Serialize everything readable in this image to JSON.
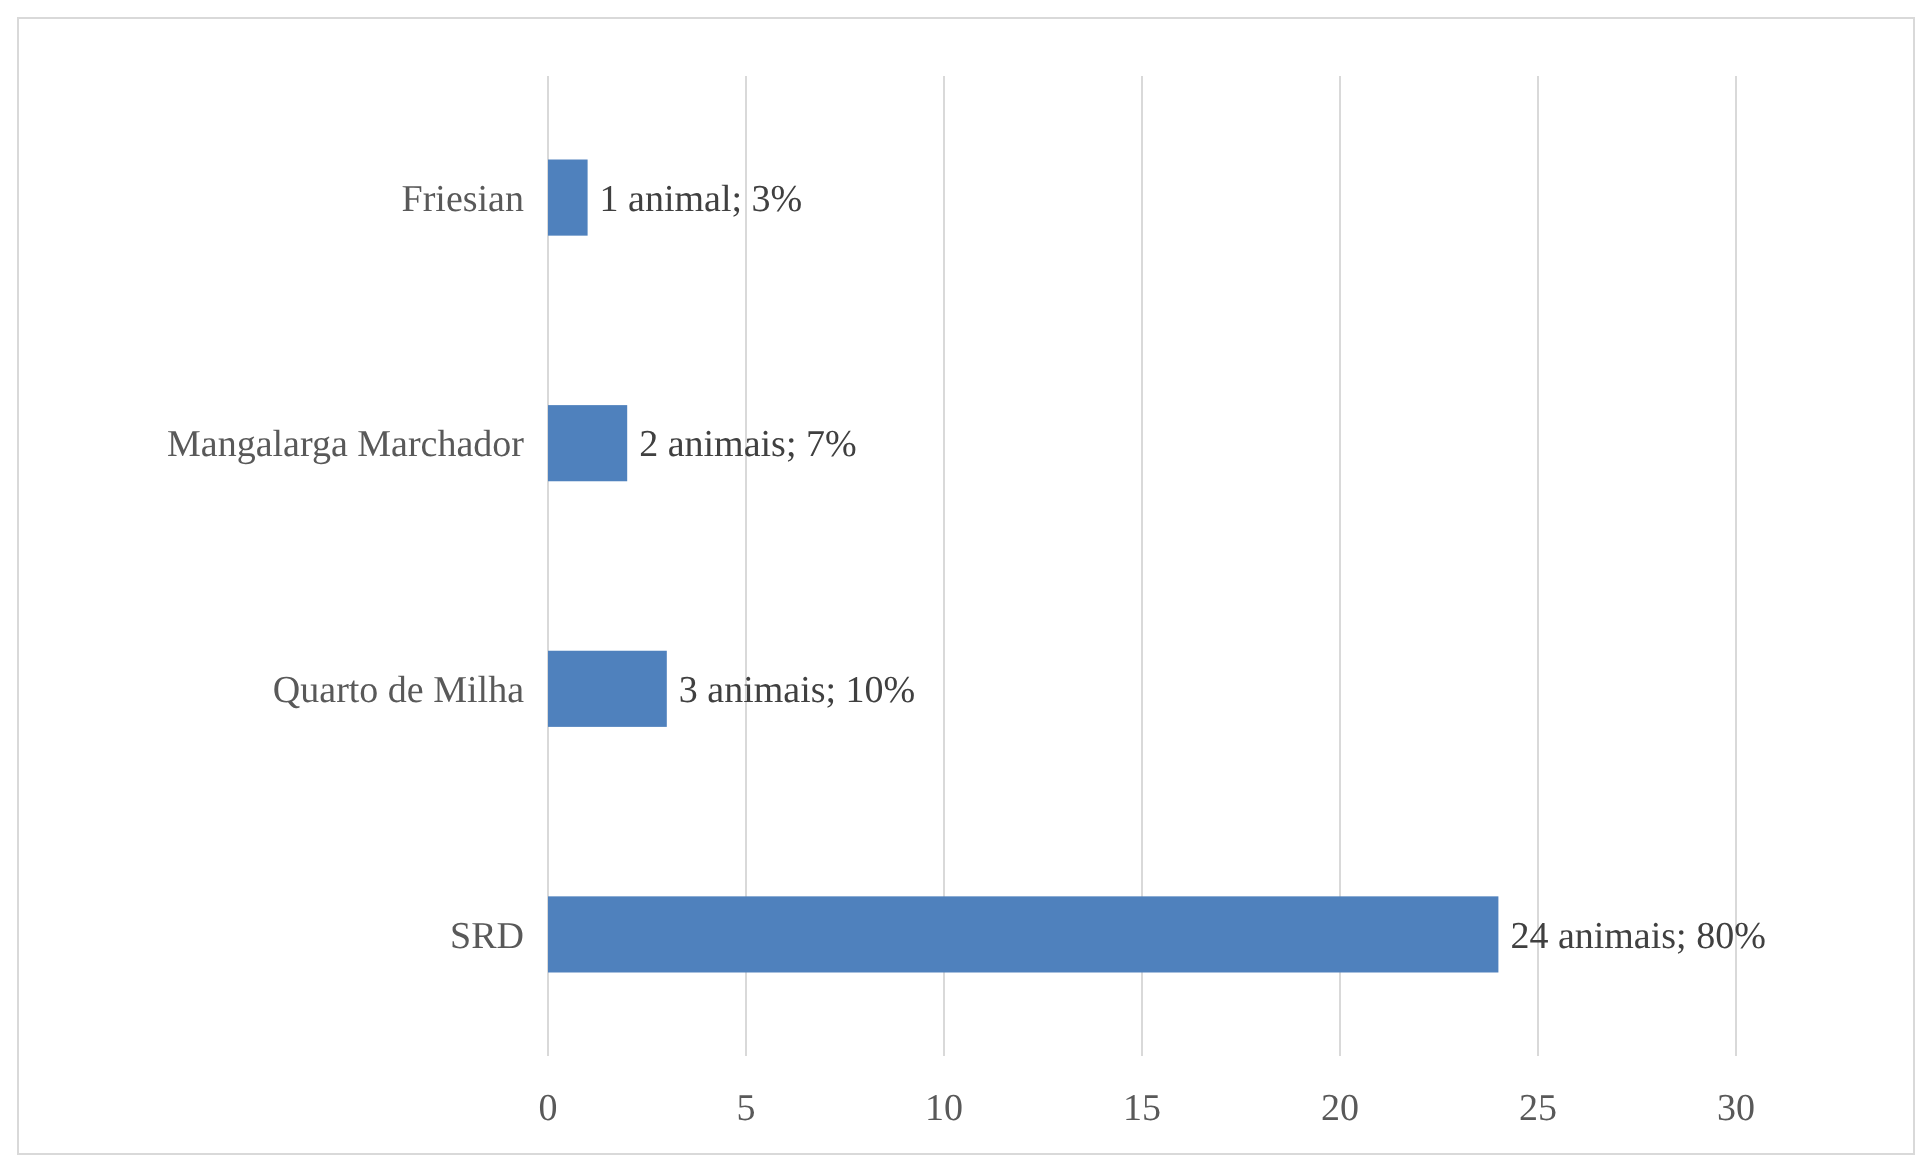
{
  "chart_data": {
    "type": "bar",
    "orientation": "horizontal",
    "categories": [
      "Friesian",
      "Mangalarga Marchador",
      "Quarto de Milha",
      "SRD"
    ],
    "values": [
      1,
      2,
      3,
      24
    ],
    "color": "#4f81bd",
    "value_labels": [
      "1 animal; 3%",
      "2 animais; 7%",
      "3 animais; 10%",
      "24 animais; 80%"
    ],
    "xlim": [
      0,
      30
    ],
    "xticks": [
      0,
      5,
      10,
      15,
      20,
      25,
      30
    ],
    "grid": "x"
  }
}
